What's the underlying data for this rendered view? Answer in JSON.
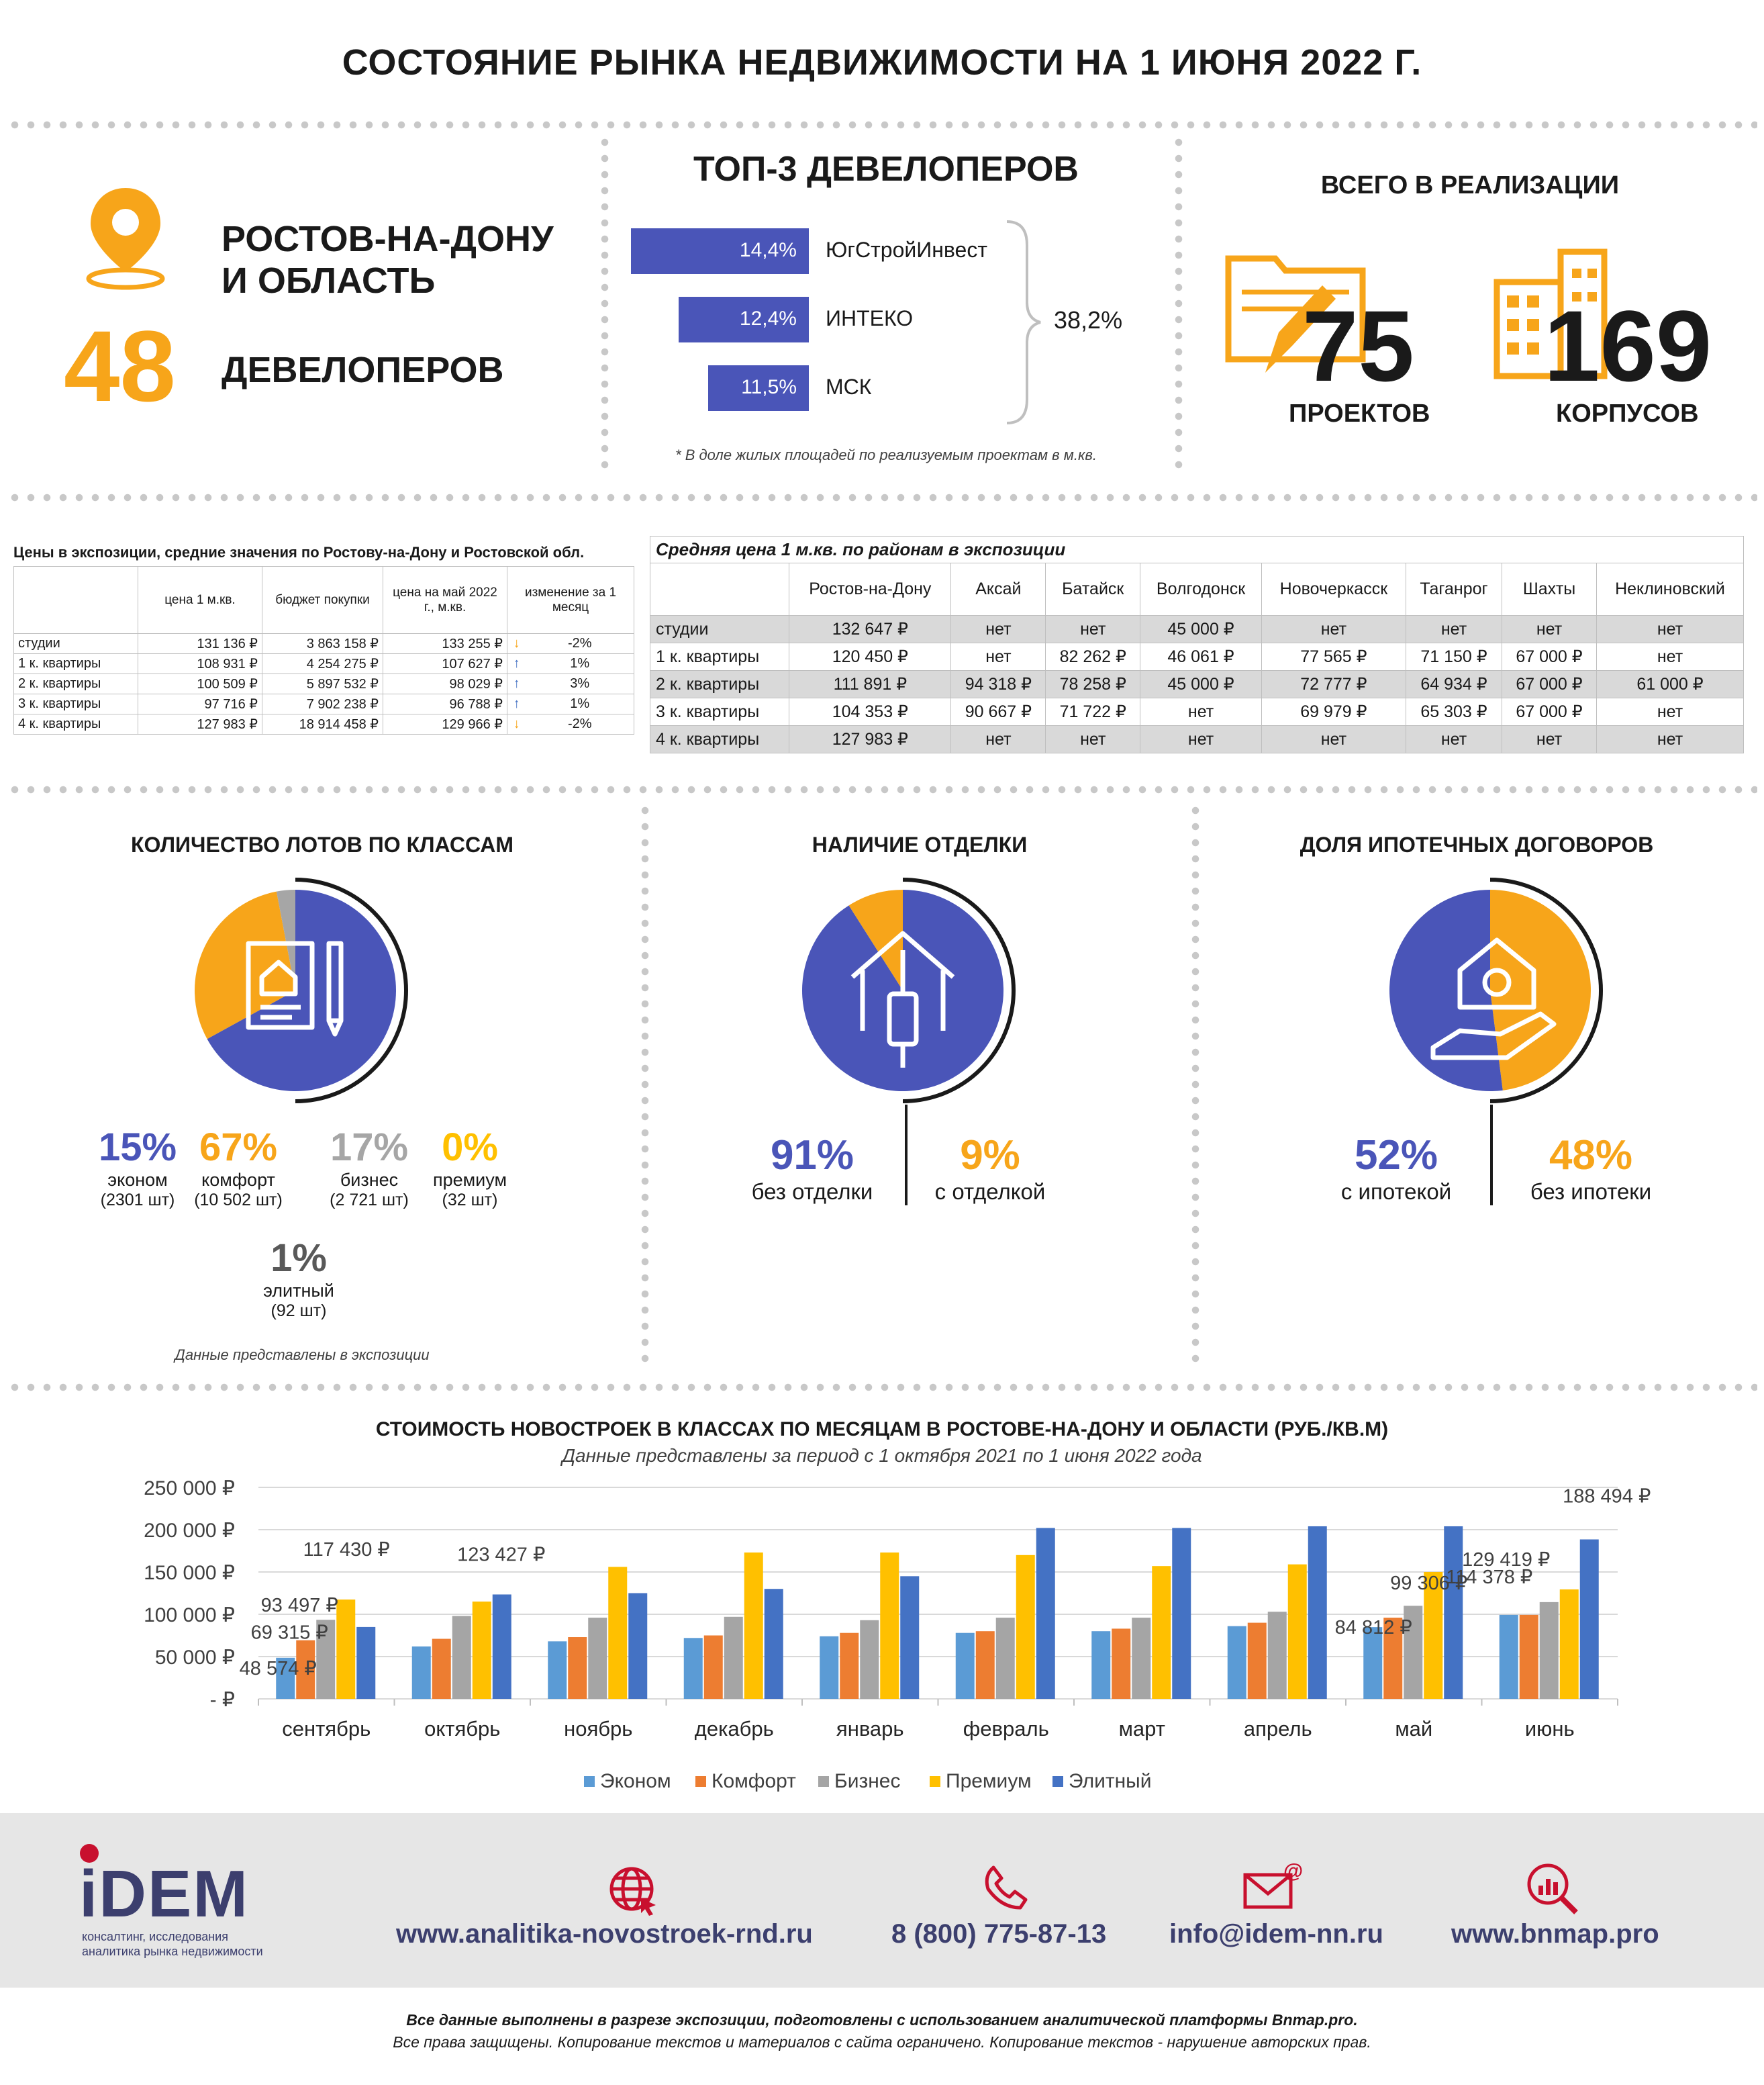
{
  "title": "СОСТОЯНИЕ РЫНКА НЕДВИЖИМОСТИ НА 1 ИЮНЯ 2022 Г.",
  "region": {
    "line1": "РОСТОВ-НА-ДОНУ",
    "line2": "И ОБЛАСТЬ",
    "count": "48",
    "count_label": "ДЕВЕЛОПЕРОВ",
    "icon": "location-pin-icon"
  },
  "top3": {
    "title": "ТОП-3 ДЕВЕЛОПЕРОВ",
    "items": [
      {
        "share": "14,4%",
        "value": 14.4,
        "name": "ЮгСтройИнвест"
      },
      {
        "share": "12,4%",
        "value": 12.4,
        "name": "ИНТЕКО"
      },
      {
        "share": "11,5%",
        "value": 11.5,
        "name": "МСК"
      }
    ],
    "total": "38,2%",
    "note": "* В доле жилых площадей по реализуемым проектам в м.кв.",
    "bar_color": "#4a55b8"
  },
  "realization": {
    "title": "ВСЕГО В РЕАЛИЗАЦИИ",
    "projects": "75",
    "projects_label": "ПРОЕКТОВ",
    "buildings": "169",
    "buildings_label": "КОРПУСОВ"
  },
  "price_table": {
    "title": "Цены в экспозиции, средние значения по Ростову-на-Дону и Ростовской обл.",
    "headers": [
      "",
      "цена 1 м.кв.",
      "бюджет покупки",
      "цена на май 2022 г., м.кв.",
      "изменение за 1 месяц"
    ],
    "rows": [
      {
        "label": "студии",
        "price": "131 136 ₽",
        "budget": "3 863 158 ₽",
        "may": "133 255 ₽",
        "arrow": "↓",
        "dir": "down",
        "change": "-2%"
      },
      {
        "label": "1 к. квартиры",
        "price": "108 931 ₽",
        "budget": "4 254 275 ₽",
        "may": "107 627 ₽",
        "arrow": "↑",
        "dir": "up",
        "change": "1%"
      },
      {
        "label": "2 к. квартиры",
        "price": "100 509 ₽",
        "budget": "5 897 532 ₽",
        "may": "98 029 ₽",
        "arrow": "↑",
        "dir": "up",
        "change": "3%"
      },
      {
        "label": "3 к. квартиры",
        "price": "97 716 ₽",
        "budget": "7 902 238 ₽",
        "may": "96 788 ₽",
        "arrow": "↑",
        "dir": "up",
        "change": "1%"
      },
      {
        "label": "4 к. квартиры",
        "price": "127 983 ₽",
        "budget": "18 914 458 ₽",
        "may": "129 966 ₽",
        "arrow": "↓",
        "dir": "down",
        "change": "-2%"
      }
    ]
  },
  "district_table": {
    "title": "Средняя цена 1 м.кв. по районам  в экспозиции",
    "headers": [
      "",
      "Ростов-на-Дону",
      "Аксай",
      "Батайск",
      "Волгодонск",
      "Новочеркасск",
      "Таганрог",
      "Шахты",
      "Неклиновский"
    ],
    "rows": [
      [
        "студии",
        "132 647 ₽",
        "нет",
        "нет",
        "45 000 ₽",
        "нет",
        "нет",
        "нет",
        "нет"
      ],
      [
        "1 к. квартиры",
        "120 450 ₽",
        "нет",
        "82 262 ₽",
        "46 061 ₽",
        "77 565 ₽",
        "71 150 ₽",
        "67 000 ₽",
        "нет"
      ],
      [
        "2 к. квартиры",
        "111 891 ₽",
        "94 318 ₽",
        "78 258 ₽",
        "45 000 ₽",
        "72 777 ₽",
        "64 934 ₽",
        "67 000 ₽",
        "61 000 ₽"
      ],
      [
        "3 к. квартиры",
        "104 353 ₽",
        "90 667 ₽",
        "71 722 ₽",
        "нет",
        "69 979 ₽",
        "65 303 ₽",
        "67 000 ₽",
        "нет"
      ],
      [
        "4 к. квартиры",
        "127 983 ₽",
        "нет",
        "нет",
        "нет",
        "нет",
        "нет",
        "нет",
        "нет"
      ]
    ]
  },
  "lots": {
    "title": "КОЛИЧЕСТВО ЛОТОВ ПО КЛАССАМ",
    "classes": [
      {
        "pct": "15%",
        "name": "эконом",
        "count": "(2301 шт)",
        "color": "#4a55b8"
      },
      {
        "pct": "67%",
        "name": "комфорт",
        "count": "(10 502 шт)",
        "color": "#f7a51a"
      },
      {
        "pct": "17%",
        "name": "бизнес",
        "count": "(2 721 шт)",
        "color": "#a6a6a6"
      },
      {
        "pct": "0%",
        "name": "премиум",
        "count": "(32 шт)",
        "color": "#ffc000"
      },
      {
        "pct": "1%",
        "name": "элитный",
        "count": "(92 шт)",
        "color": "#7f7f7f"
      }
    ],
    "note": "Данные представлены в экспозиции"
  },
  "finish": {
    "title": "НАЛИЧИЕ ОТДЕЛКИ",
    "a_pct": "91%",
    "a_label": "без отделки",
    "a_value": 91,
    "b_pct": "9%",
    "b_label": "с отделкой",
    "b_value": 9
  },
  "mortgage": {
    "title": "ДОЛЯ ИПОТЕЧНЫХ ДОГОВОРОВ",
    "a_pct": "52%",
    "a_label": "с ипотекой",
    "a_value": 52,
    "b_pct": "48%",
    "b_label": "без ипотеки",
    "b_value": 48
  },
  "chart_data": {
    "type": "bar",
    "title": "СТОИМОСТЬ  НОВОСТРОЕК В КЛАССАХ ПО МЕСЯЦАМ В РОСТОВЕ-НА-ДОНУ И ОБЛАСТИ (РУБ./КВ.М)",
    "subtitle": "Данные представлены за период с 1 октября 2021 по 1 июня 2022 года",
    "categories": [
      "сентябрь",
      "октябрь",
      "ноябрь",
      "декабрь",
      "январь",
      "февраль",
      "март",
      "апрель",
      "май",
      "июнь"
    ],
    "ylim": [
      0,
      250000
    ],
    "yticks": [
      "- ₽",
      "50 000 ₽",
      "100 000 ₽",
      "150 000 ₽",
      "200 000 ₽",
      "250 000 ₽"
    ],
    "series": [
      {
        "name": "Эконом",
        "color": "#5b9bd5",
        "values": [
          48574,
          62000,
          68000,
          72000,
          74000,
          78000,
          80000,
          86000,
          84812,
          99306
        ]
      },
      {
        "name": "Комфорт",
        "color": "#ed7d31",
        "values": [
          69315,
          71000,
          73000,
          75000,
          78000,
          80000,
          83000,
          90000,
          96000,
          99306
        ]
      },
      {
        "name": "Бизнес",
        "color": "#a5a5a5",
        "values": [
          93497,
          98000,
          96000,
          97000,
          93000,
          96000,
          96000,
          103000,
          110000,
          114378
        ]
      },
      {
        "name": "Премиум",
        "color": "#ffc000",
        "values": [
          117430,
          115000,
          156000,
          173000,
          173000,
          170000,
          157000,
          159000,
          150000,
          129419
        ]
      },
      {
        "name": "Элитный",
        "color": "#4472c4",
        "values": [
          85000,
          123427,
          125000,
          130000,
          145000,
          202000,
          202000,
          204000,
          204000,
          188494
        ]
      }
    ],
    "data_labels": [
      {
        "text": "48 574 ₽",
        "cat": 0,
        "series": 0
      },
      {
        "text": "69 315 ₽",
        "cat": 0,
        "series": 1
      },
      {
        "text": "93 497 ₽",
        "cat": 0,
        "series": 2
      },
      {
        "text": "117 430 ₽",
        "cat": 0,
        "series": 3
      },
      {
        "text": "123 427 ₽",
        "cat": 1,
        "series": 4
      },
      {
        "text": "84 812 ₽",
        "cat": 8,
        "series": 0
      },
      {
        "text": "99 306 ₽",
        "cat": 9,
        "series": 0
      },
      {
        "text": "114 378 ₽",
        "cat": 9,
        "series": 2
      },
      {
        "text": "129 419 ₽",
        "cat": 9,
        "series": 3
      },
      {
        "text": "188 494 ₽",
        "cat": 9,
        "series": 4
      }
    ],
    "legend": "bottom"
  },
  "footer": {
    "brand": "iDEM",
    "tagline1": "консалтинг, исследования",
    "tagline2": "аналитика рынка недвижимости",
    "links": [
      "www.analitika-novostroek-rnd.ru",
      "8 (800) 775-87-13",
      "info@idem-nn.ru",
      "www.bnmap.pro"
    ],
    "disclaimer1": "Все данные выполнены в разрезе экспозиции, подготовлены с использованием аналитической платформы Bnmap.pro.",
    "disclaimer2": "Все права защищены. Копирование текстов и материалов с сайта ограничено. Копирование текстов - нарушение авторских прав."
  }
}
